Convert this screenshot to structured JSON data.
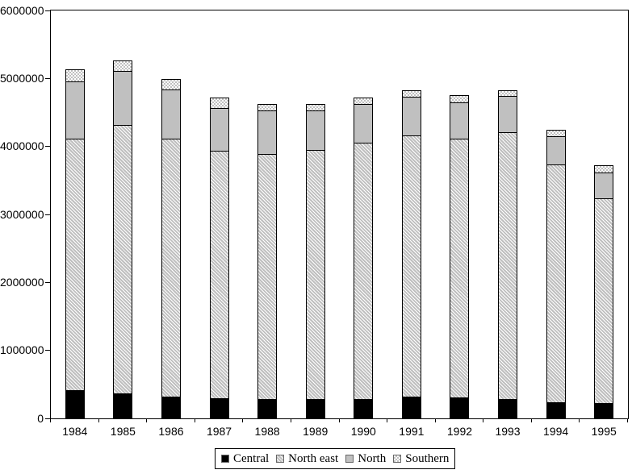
{
  "chart_data": {
    "type": "bar",
    "stacked": true,
    "title": "",
    "xlabel": "",
    "ylabel": "",
    "grid": false,
    "legend_position": "bottom",
    "ylim": [
      0,
      6000000
    ],
    "y_tick_interval": 1000000,
    "y_tick_labels": [
      "0",
      "1000000",
      "2000000",
      "3000000",
      "4000000",
      "5000000",
      "6000000"
    ],
    "categories": [
      "1984",
      "1985",
      "1986",
      "1987",
      "1988",
      "1989",
      "1990",
      "1991",
      "1992",
      "1993",
      "1994",
      "1995"
    ],
    "series": [
      {
        "name": "Central",
        "pattern": "solid-black",
        "values": [
          420000,
          370000,
          320000,
          300000,
          290000,
          290000,
          290000,
          320000,
          310000,
          280000,
          240000,
          220000
        ]
      },
      {
        "name": "North east",
        "pattern": "diagonal-hatch",
        "values": [
          3700000,
          3950000,
          3790000,
          3640000,
          3600000,
          3660000,
          3770000,
          3840000,
          3800000,
          3930000,
          3490000,
          3020000
        ]
      },
      {
        "name": "North",
        "pattern": "solid-gray",
        "values": [
          840000,
          790000,
          730000,
          630000,
          640000,
          580000,
          560000,
          570000,
          540000,
          530000,
          420000,
          380000
        ]
      },
      {
        "name": "Southern",
        "pattern": "checkerboard",
        "values": [
          180000,
          160000,
          150000,
          150000,
          100000,
          100000,
          100000,
          100000,
          100000,
          90000,
          100000,
          100000
        ]
      }
    ],
    "totals": [
      5140000,
      5270000,
      4990000,
      4720000,
      4630000,
      4630000,
      4720000,
      4830000,
      4750000,
      4830000,
      4250000,
      3720000
    ]
  },
  "colors": {
    "background": "#ffffff",
    "outline": "#000000",
    "solid_gray": "#c0c0c0",
    "hatch_gray": "#bfbfbf",
    "checker_gray": "#c0c0c0"
  }
}
